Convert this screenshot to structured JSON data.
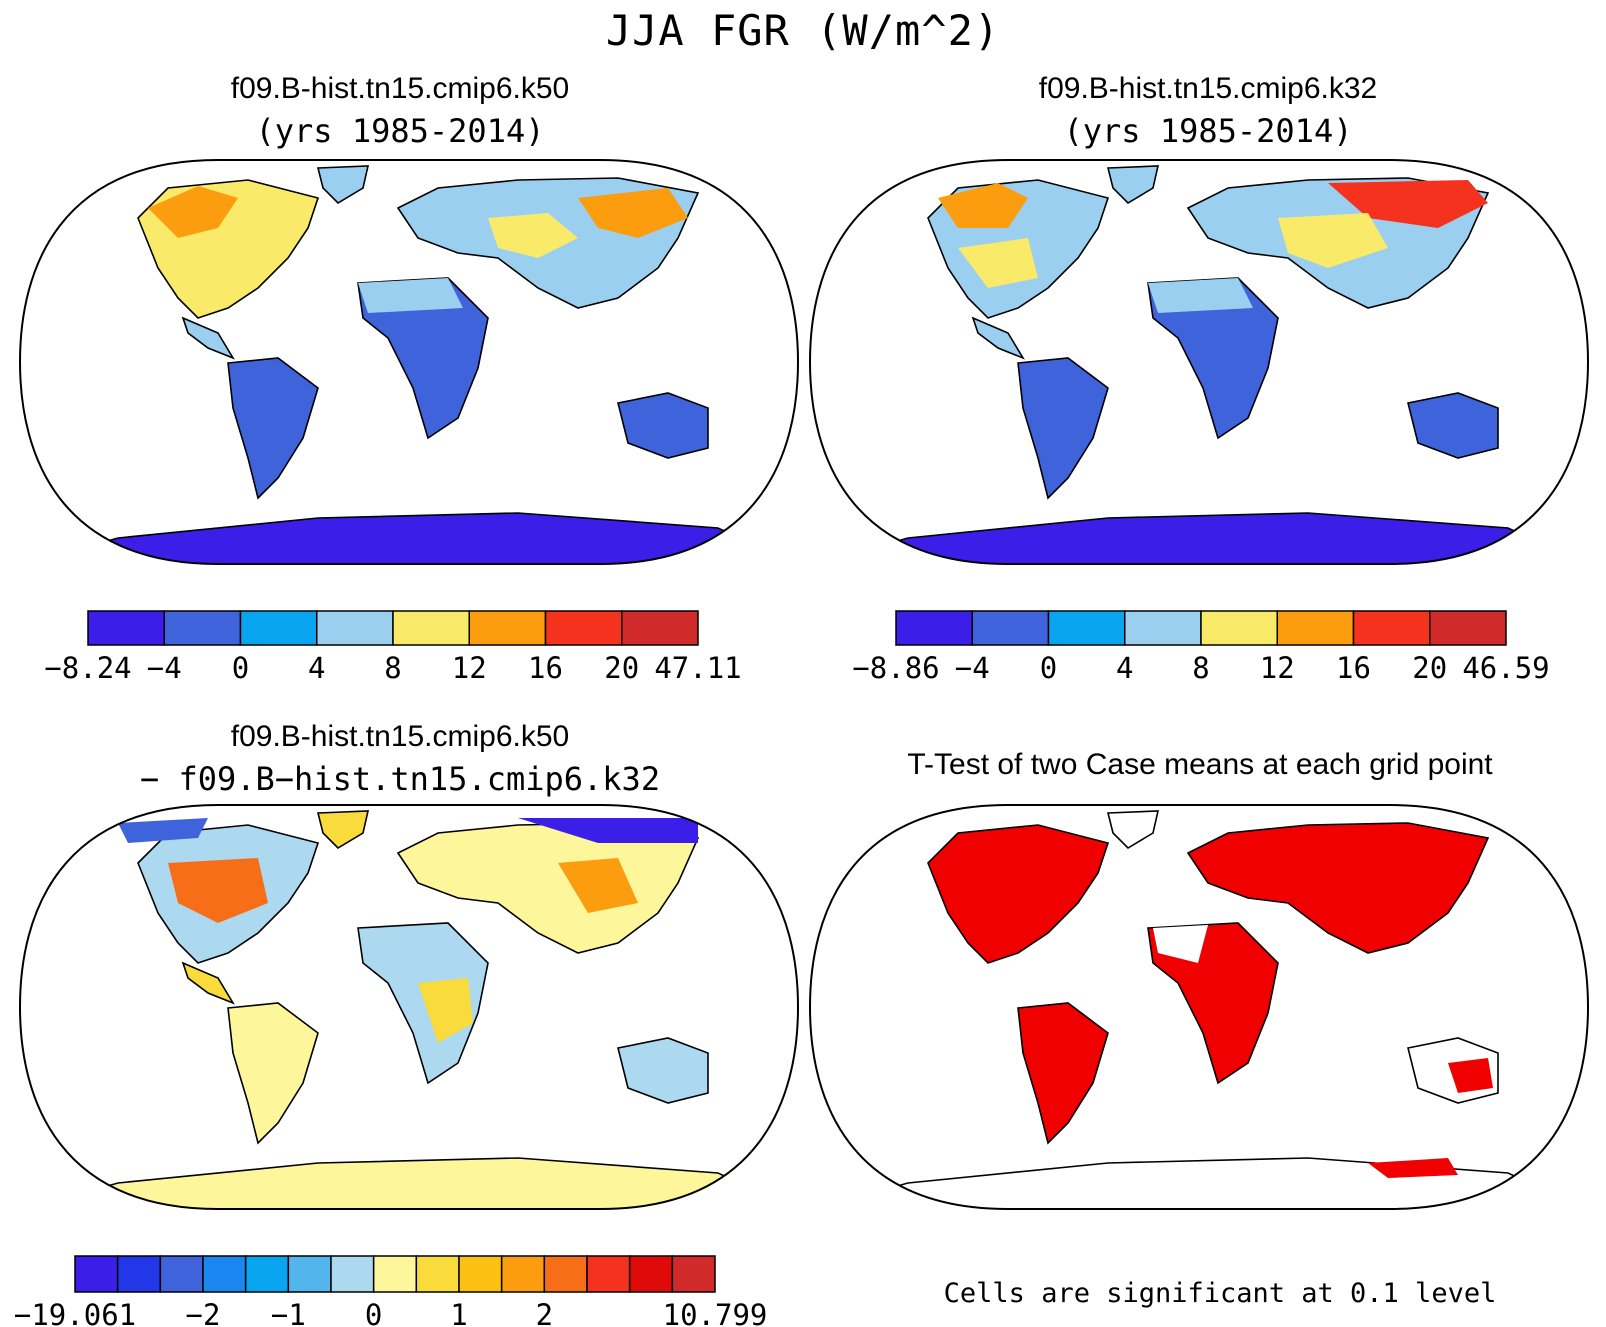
{
  "title": "JJA FGR (W/m^2)",
  "panels": [
    {
      "id": "case1",
      "title": "f09.B-hist.tn15.cmip6.k50",
      "subtitle": "(yrs 1985-2014)",
      "colorbar": {
        "colors": [
          "#3b1ee8",
          "#3f63db",
          "#0aa5f0",
          "#9acfef",
          "#f9ea6a",
          "#fb9d0f",
          "#f4321e",
          "#d02a2a"
        ],
        "labels": [
          "−8.24",
          "−4",
          "0",
          "4",
          "8",
          "12",
          "16",
          "20",
          "47.11"
        ]
      }
    },
    {
      "id": "case2",
      "title": "f09.B-hist.tn15.cmip6.k32",
      "subtitle": "(yrs 1985-2014)",
      "colorbar": {
        "colors": [
          "#3b1ee8",
          "#3f63db",
          "#0aa5f0",
          "#9acfef",
          "#f9ea6a",
          "#fb9d0f",
          "#f4321e",
          "#d02a2a"
        ],
        "labels": [
          "−8.86",
          "−4",
          "0",
          "4",
          "8",
          "12",
          "16",
          "20",
          "46.59"
        ]
      }
    },
    {
      "id": "diff",
      "title": "f09.B-hist.tn15.cmip6.k50",
      "subtitle": "− f09.B−hist.tn15.cmip6.k32",
      "colorbar": {
        "colors": [
          "#3b1ee8",
          "#2137e8",
          "#3f63db",
          "#1a87f0",
          "#0aa5f0",
          "#52b6ec",
          "#acd8f0",
          "#fdf69a",
          "#f9dc3c",
          "#fbc012",
          "#fb9d0f",
          "#f76e18",
          "#f4321e",
          "#e00a0a",
          "#d02a2a"
        ],
        "labels": [
          "−19.061",
          "−2",
          "−1",
          "0",
          "1",
          "2",
          "10.799"
        ]
      }
    },
    {
      "id": "ttest",
      "title": "T-Test of two Case means at each grid point",
      "note": "Cells are significant at 0.1 level"
    }
  ]
}
